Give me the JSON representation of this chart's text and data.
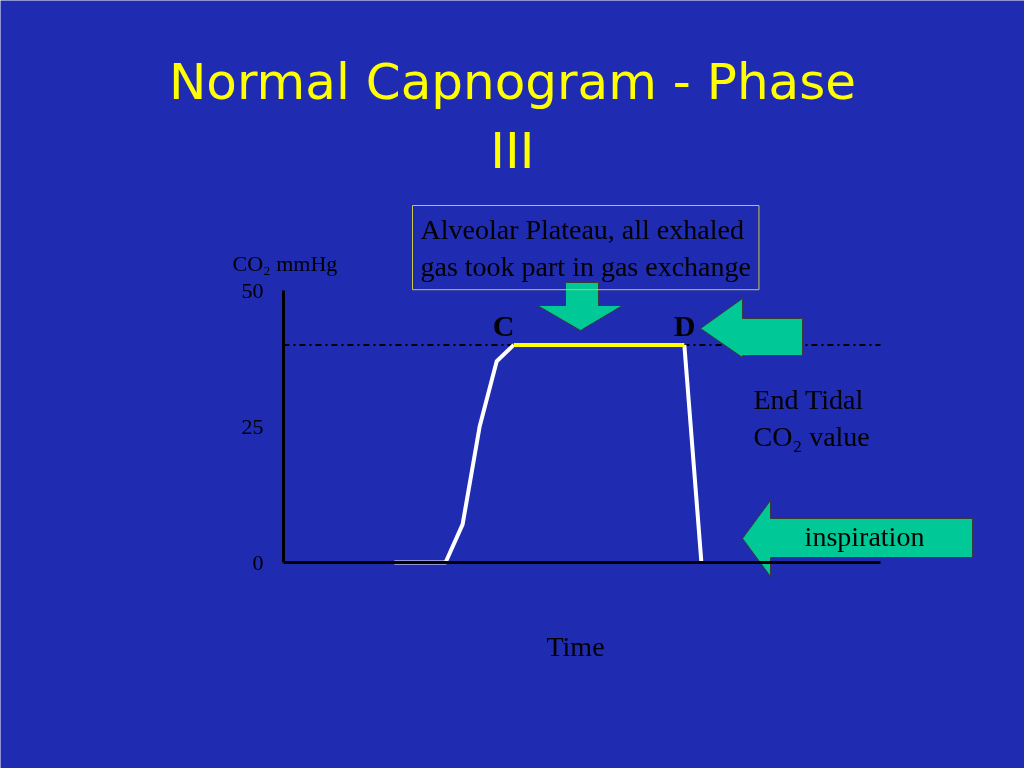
{
  "chart_data": {
    "type": "line",
    "title": "Normal Capnogram - Phase III",
    "xlabel": "Time",
    "ylabel": "CO₂ mmHg",
    "categories": [
      null,
      null,
      null,
      null,
      null,
      null,
      null,
      null,
      null,
      null,
      null,
      null,
      null,
      null,
      null,
      null,
      null,
      null,
      null,
      null,
      null,
      null,
      null,
      null,
      null,
      null,
      null,
      null,
      null,
      null,
      null,
      null,
      null,
      null,
      null
    ],
    "series": [
      {
        "color": "#ffffff",
        "values": [
          null,
          null,
          null,
          null,
          null,
          null,
          0,
          0,
          0,
          0,
          7,
          25,
          37,
          40,
          null,
          null,
          null,
          null,
          null,
          null,
          null,
          null,
          null,
          40,
          0,
          null,
          null,
          null,
          null,
          null,
          null,
          null,
          null,
          null,
          null
        ]
      },
      {
        "color": "#ffff00",
        "values": [
          null,
          null,
          null,
          null,
          null,
          null,
          null,
          null,
          null,
          null,
          null,
          null,
          null,
          40,
          40,
          40,
          40,
          40,
          40,
          40,
          40,
          40,
          40,
          40,
          null,
          null,
          null,
          null,
          null,
          null,
          null,
          null,
          null,
          null,
          null
        ]
      }
    ],
    "ylim": [
      0,
      50
    ],
    "yticks": [
      0,
      25,
      50
    ],
    "tick_labels": "y",
    "grid": false,
    "marker": "none",
    "line_style": "solid",
    "ref_lines": [
      {
        "axis": "y",
        "value": 40,
        "color": "#000000",
        "line_style": "dashdot"
      }
    ],
    "annotations": [
      "Alveolar Plateau, all exhaled gas took part in gas exchange",
      "C",
      "D",
      "End Tidal CO₂ value",
      "inspiration"
    ]
  }
}
